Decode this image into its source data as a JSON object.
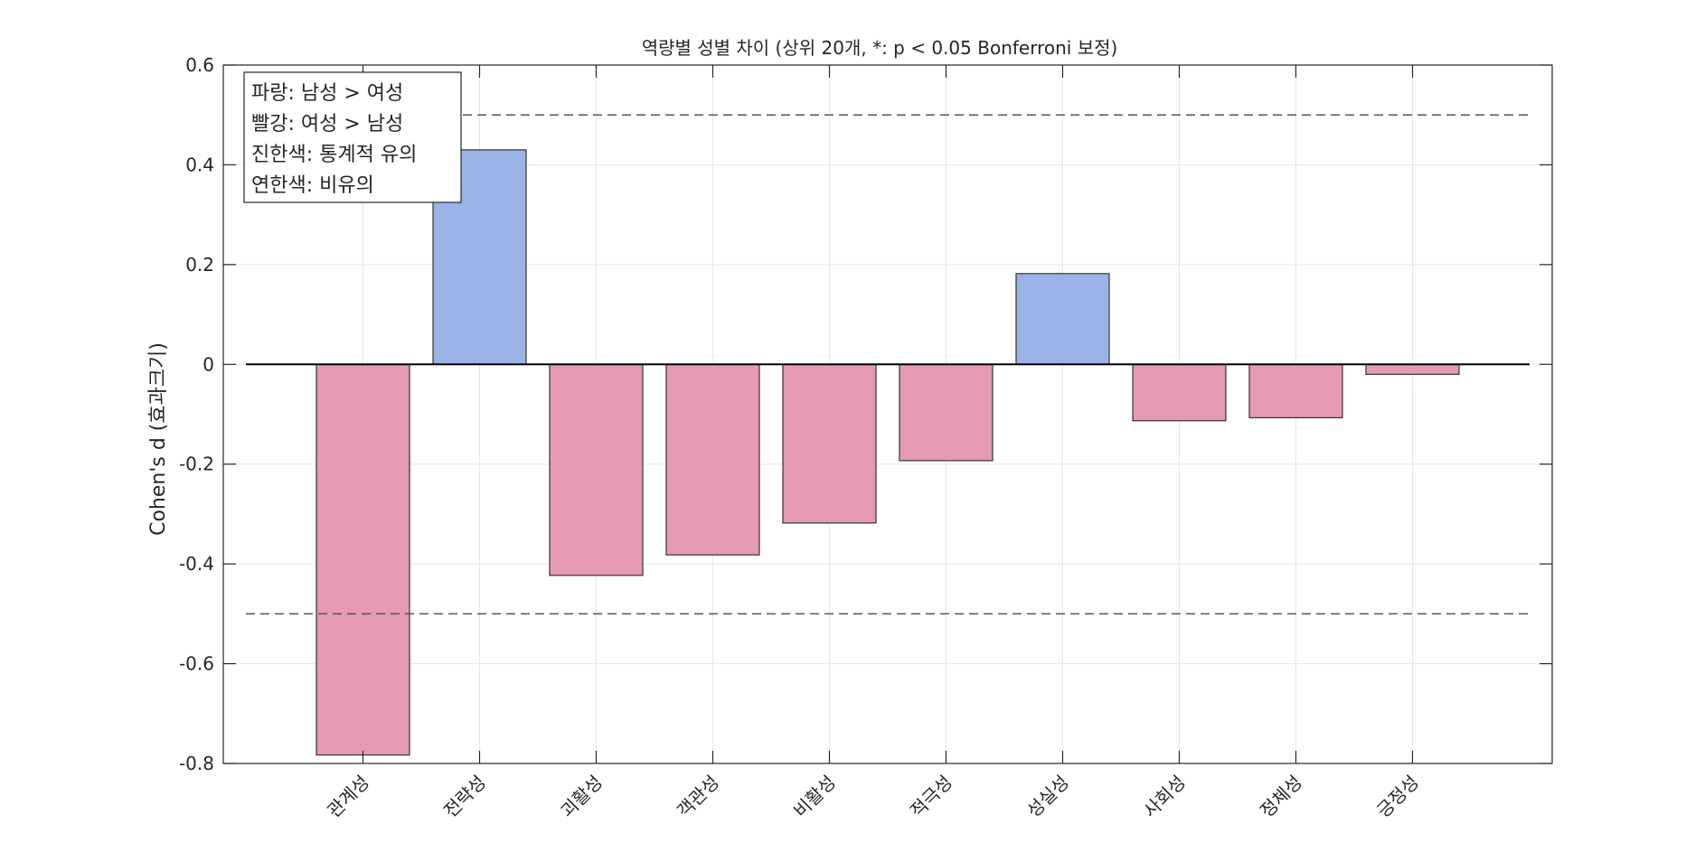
{
  "chart_data": {
    "type": "bar",
    "title": "역량별 성별 차이 (상위 20개, *: p < 0.05 Bonferroni 보정)",
    "xlabel": "",
    "ylabel": "Cohen's d (효과크기)",
    "categories": [
      "관계성",
      "전략성",
      "괴활성",
      "객관성",
      "비활성",
      "적극성",
      "성실성",
      "사회성",
      "정체성",
      "긍정성"
    ],
    "values": [
      -0.783,
      0.43,
      -0.423,
      -0.382,
      -0.318,
      -0.193,
      0.182,
      -0.113,
      -0.107,
      -0.02
    ],
    "significant": [
      false,
      false,
      false,
      false,
      false,
      false,
      false,
      false,
      false,
      false
    ],
    "ylim": [
      -0.8,
      0.6
    ],
    "yticks": [
      -0.8,
      -0.6,
      -0.4,
      -0.2,
      0,
      0.2,
      0.4,
      0.6
    ],
    "ytick_labels": [
      "-0.8",
      "-0.6",
      "-0.4",
      "-0.2",
      "0",
      "0.2",
      "0.4",
      "0.6"
    ],
    "reference_lines": [
      0.5,
      -0.5
    ],
    "grid": true,
    "legend_position": "top-left",
    "legend_lines": [
      "파랑: 남성 > 여성",
      "빨강: 여성 > 남성",
      "진한색: 통계적 유의",
      "연한색: 비유의"
    ],
    "colors": {
      "positive": "#99b3e6",
      "negative": "#e699b3",
      "bar_edge": "#333333",
      "grid": "#e6e6e6",
      "axis": "#262626",
      "reference": "#555555"
    }
  }
}
